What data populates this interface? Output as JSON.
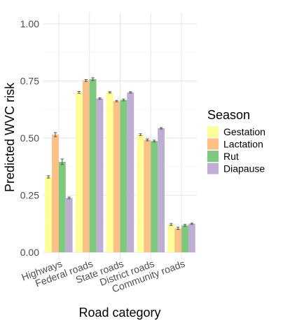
{
  "chart_data": {
    "type": "bar",
    "xlabel": "Road category",
    "ylabel": "Predicted WVC risk",
    "ylim": [
      0,
      1.0
    ],
    "yticks": [
      0.0,
      0.25,
      0.5,
      0.75,
      1.0
    ],
    "ytick_labels": [
      "0.00",
      "0.25",
      "0.50",
      "0.75",
      "1.00"
    ],
    "categories": [
      "Highways",
      "Federal roads",
      "State roads",
      "District roads",
      "Community roads"
    ],
    "grid": true,
    "legend": {
      "title": "Season",
      "position": "right"
    },
    "series": [
      {
        "name": "Gestation",
        "color": "#FFFF99",
        "values": [
          0.33,
          0.7,
          0.7,
          0.515,
          0.122
        ],
        "errors": [
          0.005,
          0.004,
          0.003,
          0.004,
          0.004
        ]
      },
      {
        "name": "Lactation",
        "color": "#FDC086",
        "values": [
          0.515,
          0.752,
          0.662,
          0.492,
          0.105
        ],
        "errors": [
          0.009,
          0.004,
          0.003,
          0.004,
          0.005
        ]
      },
      {
        "name": "Rut",
        "color": "#7FC97F",
        "values": [
          0.396,
          0.758,
          0.667,
          0.487,
          0.118
        ],
        "errors": [
          0.012,
          0.006,
          0.004,
          0.004,
          0.004
        ]
      },
      {
        "name": "Diapause",
        "color": "#BEAED4",
        "values": [
          0.238,
          0.673,
          0.7,
          0.543,
          0.125
        ],
        "errors": [
          0.004,
          0.003,
          0.003,
          0.003,
          0.003
        ]
      }
    ]
  }
}
